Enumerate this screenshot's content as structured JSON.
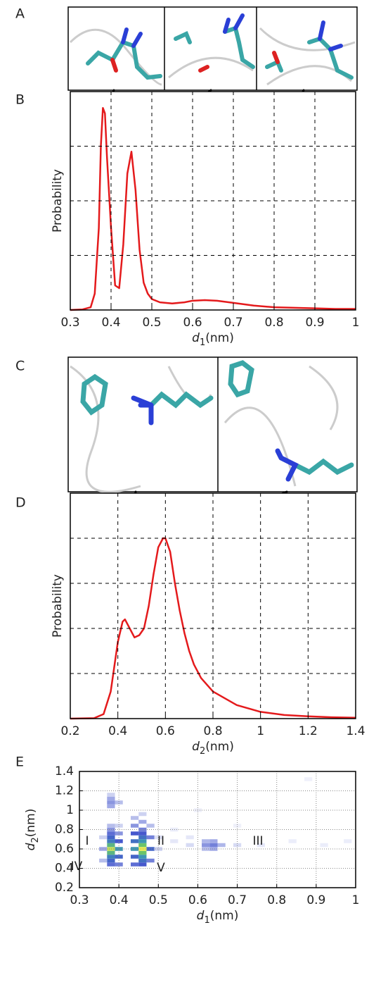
{
  "panel_labels": [
    "A",
    "B",
    "C",
    "D",
    "E"
  ],
  "chart_data": [
    {
      "type": "line",
      "xlabel": {
        "symbol": "d",
        "subscript": "1",
        "unit": "(nm)"
      },
      "ylabel": "Probability",
      "xlim": [
        0.3,
        1
      ],
      "xticks": [
        0.3,
        0.4,
        0.5,
        0.6,
        0.7,
        0.8,
        0.9,
        1
      ],
      "ylim": [
        0,
        4
      ],
      "yticks": [
        1,
        2,
        3
      ],
      "ytick_labels": false,
      "grid": "dashed",
      "color": "#e41a1c",
      "x": [
        0.3,
        0.33,
        0.35,
        0.36,
        0.37,
        0.375,
        0.38,
        0.385,
        0.39,
        0.4,
        0.41,
        0.42,
        0.43,
        0.44,
        0.45,
        0.46,
        0.47,
        0.48,
        0.49,
        0.5,
        0.52,
        0.55,
        0.58,
        0.6,
        0.63,
        0.66,
        0.7,
        0.75,
        0.8,
        0.85,
        0.9,
        0.95,
        1.0
      ],
      "values": [
        0,
        0.01,
        0.05,
        0.3,
        1.5,
        3.0,
        3.7,
        3.6,
        2.8,
        1.5,
        0.45,
        0.4,
        1.2,
        2.5,
        2.9,
        2.2,
        1.1,
        0.5,
        0.3,
        0.2,
        0.14,
        0.12,
        0.14,
        0.17,
        0.18,
        0.17,
        0.13,
        0.08,
        0.05,
        0.04,
        0.03,
        0.02,
        0.02
      ]
    },
    {
      "type": "line",
      "xlabel": {
        "symbol": "d",
        "subscript": "2",
        "unit": "(nm)"
      },
      "ylabel": "Probability",
      "xlim": [
        0.2,
        1.4
      ],
      "xticks": [
        0.2,
        0.4,
        0.6,
        0.8,
        1,
        1.2,
        1.4
      ],
      "ylim": [
        0,
        5
      ],
      "yticks": [
        1,
        2,
        3,
        4
      ],
      "ytick_labels": false,
      "grid": "dashed",
      "color": "#e41a1c",
      "x": [
        0.2,
        0.3,
        0.34,
        0.37,
        0.4,
        0.42,
        0.43,
        0.45,
        0.47,
        0.49,
        0.51,
        0.53,
        0.55,
        0.57,
        0.59,
        0.6,
        0.62,
        0.64,
        0.66,
        0.68,
        0.7,
        0.72,
        0.75,
        0.8,
        0.85,
        0.9,
        1.0,
        1.1,
        1.2,
        1.3,
        1.4
      ],
      "values": [
        0,
        0.01,
        0.1,
        0.6,
        1.7,
        2.15,
        2.2,
        2.0,
        1.8,
        1.85,
        2.0,
        2.5,
        3.2,
        3.8,
        4.0,
        4.0,
        3.7,
        3.0,
        2.4,
        1.9,
        1.5,
        1.2,
        0.9,
        0.6,
        0.45,
        0.3,
        0.15,
        0.08,
        0.05,
        0.03,
        0.02
      ]
    },
    {
      "type": "heatmap",
      "xlabel": {
        "symbol": "d",
        "subscript": "1",
        "unit": "(nm)"
      },
      "ylabel": {
        "symbol": "d",
        "subscript": "2",
        "unit": "(nm)"
      },
      "xlim": [
        0.3,
        1
      ],
      "xticks": [
        0.3,
        0.4,
        0.5,
        0.6,
        0.7,
        0.8,
        0.9,
        1
      ],
      "ylim": [
        0.2,
        1.4
      ],
      "yticks": [
        0.2,
        0.4,
        0.6,
        0.8,
        1,
        1.2,
        1.4
      ],
      "ytick_labels": true,
      "grid": "dotted",
      "annotations": [
        "I",
        "II",
        "III",
        "IV",
        "V"
      ],
      "x": [
        0.38,
        0.38,
        0.38,
        0.38,
        0.38,
        0.38,
        0.38,
        0.38,
        0.38,
        0.38,
        0.38,
        0.38,
        0.38,
        0.38,
        0.38,
        0.4,
        0.4,
        0.4,
        0.4,
        0.4,
        0.4,
        0.4,
        0.36,
        0.36,
        0.36,
        0.44,
        0.44,
        0.44,
        0.44,
        0.44,
        0.44,
        0.44,
        0.46,
        0.46,
        0.46,
        0.46,
        0.46,
        0.46,
        0.46,
        0.46,
        0.46,
        0.46,
        0.46,
        0.46,
        0.48,
        0.48,
        0.48,
        0.48,
        0.5,
        0.5,
        0.54,
        0.54,
        0.58,
        0.58,
        0.62,
        0.62,
        0.62,
        0.64,
        0.64,
        0.64,
        0.66,
        0.7,
        0.76,
        0.84,
        0.92,
        0.98,
        0.88,
        0.6,
        0.7
      ],
      "y": [
        0.44,
        0.48,
        0.52,
        0.56,
        0.6,
        0.64,
        0.68,
        0.72,
        0.76,
        0.8,
        0.84,
        1.04,
        1.08,
        1.12,
        1.16,
        0.44,
        0.52,
        0.6,
        0.68,
        0.76,
        0.84,
        1.08,
        0.48,
        0.6,
        0.72,
        0.44,
        0.52,
        0.6,
        0.68,
        0.76,
        0.84,
        0.92,
        0.44,
        0.48,
        0.52,
        0.56,
        0.6,
        0.64,
        0.68,
        0.72,
        0.76,
        0.8,
        0.88,
        0.96,
        0.48,
        0.6,
        0.72,
        0.84,
        0.6,
        0.72,
        0.68,
        0.8,
        0.64,
        0.72,
        0.6,
        0.64,
        0.68,
        0.6,
        0.64,
        0.68,
        0.64,
        0.64,
        0.64,
        0.68,
        0.64,
        0.68,
        1.32,
        1.0,
        0.84
      ],
      "values": [
        0.4,
        0.5,
        0.6,
        0.8,
        0.95,
        0.8,
        0.6,
        0.5,
        0.4,
        0.3,
        0.2,
        0.25,
        0.3,
        0.25,
        0.15,
        0.35,
        0.5,
        0.7,
        0.45,
        0.3,
        0.15,
        0.2,
        0.2,
        0.25,
        0.15,
        0.4,
        0.5,
        0.7,
        0.55,
        0.45,
        0.3,
        0.2,
        0.45,
        0.55,
        0.7,
        0.85,
        1.0,
        0.85,
        0.7,
        0.55,
        0.45,
        0.35,
        0.25,
        0.15,
        0.35,
        0.5,
        0.35,
        0.2,
        0.15,
        0.1,
        0.08,
        0.06,
        0.12,
        0.08,
        0.2,
        0.3,
        0.22,
        0.25,
        0.35,
        0.25,
        0.22,
        0.12,
        0.08,
        0.06,
        0.06,
        0.06,
        0.05,
        0.05,
        0.05
      ]
    }
  ]
}
